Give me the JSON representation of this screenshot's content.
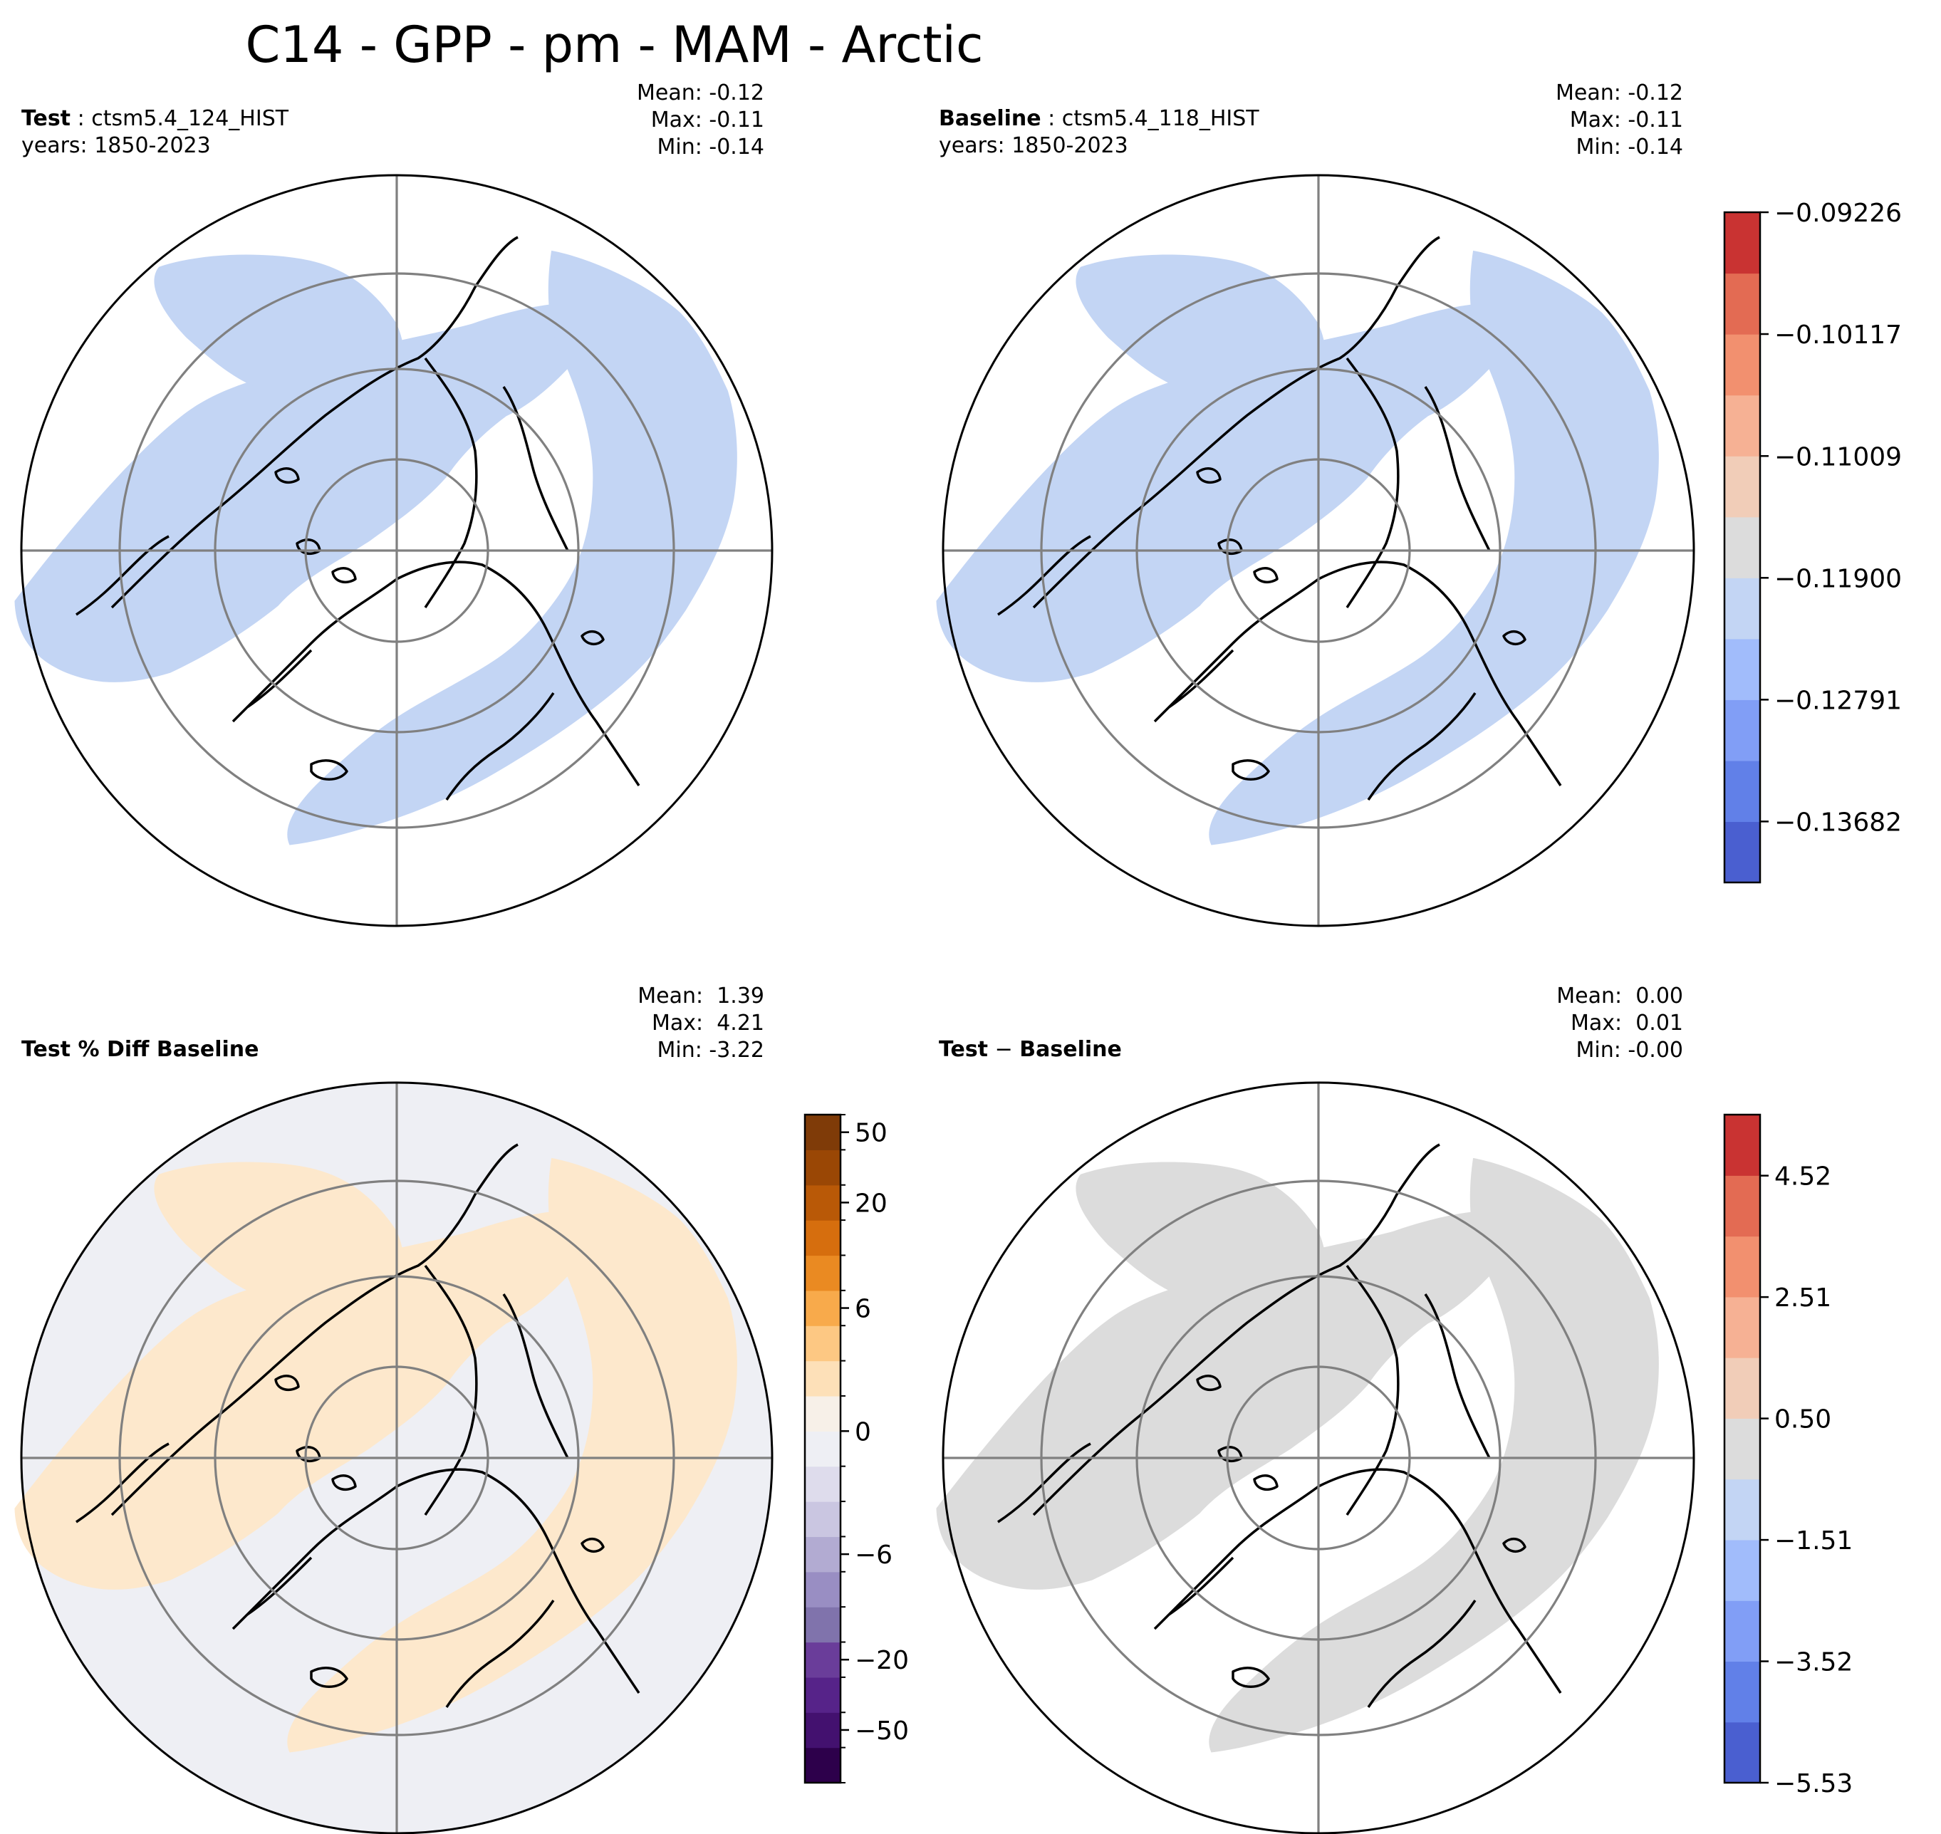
{
  "title": "C14 - GPP - pm - MAM - Arctic",
  "chart_data": [
    {
      "type": "heatmap",
      "projection": "north-polar-stereographic",
      "label": "Test",
      "case": "ctsm5.4_124_HIST",
      "years": "years: 1850-2023",
      "stats": {
        "mean": "Mean: -0.12",
        "max": "Max: -0.11",
        "min": "Min: -0.14"
      },
      "latitude_rings": [
        50,
        60,
        70,
        80
      ],
      "field_color": "#c3d5f4",
      "ocean_color": "#ffffff"
    },
    {
      "type": "heatmap",
      "projection": "north-polar-stereographic",
      "label": "Baseline",
      "case": "ctsm5.4_118_HIST",
      "years": "years: 1850-2023",
      "stats": {
        "mean": "Mean: -0.12",
        "max": "Max: -0.11",
        "min": "Min: -0.14"
      },
      "latitude_rings": [
        50,
        60,
        70,
        80
      ],
      "field_color": "#c3d5f4",
      "ocean_color": "#ffffff"
    },
    {
      "type": "heatmap",
      "projection": "north-polar-stereographic",
      "label": "Test % Diff Baseline",
      "stats": {
        "mean": "Mean:  1.39",
        "max": "Max:  4.21",
        "min": "Min: -3.22"
      },
      "latitude_rings": [
        50,
        60,
        70,
        80
      ],
      "field_color": "#fde8cc",
      "ocean_color": "#eeeff4"
    },
    {
      "type": "heatmap",
      "projection": "north-polar-stereographic",
      "label": "Test − Baseline",
      "label_parts": [
        "Test",
        "−",
        "Baseline"
      ],
      "stats": {
        "mean": "Mean:  0.00",
        "max": "Max:  0.01",
        "min": "Min: -0.00"
      },
      "latitude_rings": [
        50,
        60,
        70,
        80
      ],
      "field_color": "#dcdcdc",
      "ocean_color": "#ffffff"
    }
  ],
  "colorbars": {
    "top": {
      "colors": [
        "#4a5fd0",
        "#6180e8",
        "#819ef6",
        "#a1bcfb",
        "#c3d5f4",
        "#dcdcdc",
        "#f1cdb8",
        "#f6b194",
        "#f2906f",
        "#e36b53",
        "#c93332"
      ],
      "ticks": [
        {
          "label": "−0.13682",
          "value": -0.13682
        },
        {
          "label": "−0.12791",
          "value": -0.12791
        },
        {
          "label": "−0.11900",
          "value": -0.119
        },
        {
          "label": "−0.11009",
          "value": -0.11009
        },
        {
          "label": "−0.10117",
          "value": -0.10117
        },
        {
          "label": "−0.09226",
          "value": -0.09226
        }
      ],
      "range": [
        -0.14128,
        -0.09226
      ]
    },
    "pct": {
      "colors": [
        "#2d004b",
        "#43116f",
        "#562389",
        "#6a3d9a",
        "#8073ac",
        "#998ec3",
        "#b2abd2",
        "#cac6e1",
        "#dedcec",
        "#eeeff4",
        "#f7f0e8",
        "#fde0b8",
        "#fdc883",
        "#f8aa4b",
        "#ea8a22",
        "#d66e0e",
        "#b95907",
        "#9a4705",
        "#7f3b08"
      ],
      "ticks": [
        {
          "label": "−50",
          "index": 1
        },
        {
          "label": "−20",
          "index": 3
        },
        {
          "label": "−6",
          "index": 6
        },
        {
          "label": "0",
          "index": 9.5
        },
        {
          "label": "6",
          "index": 13
        },
        {
          "label": "20",
          "index": 16
        },
        {
          "label": "50",
          "index": 18
        }
      ]
    },
    "diff": {
      "colors": [
        "#4a5fd0",
        "#6180e8",
        "#819ef6",
        "#a1bcfb",
        "#c3d5f4",
        "#dcdcdc",
        "#f1cdb8",
        "#f6b194",
        "#f2906f",
        "#e36b53",
        "#c93332"
      ],
      "ticks": [
        {
          "label": "−5.53",
          "value": -5.53
        },
        {
          "label": "−3.52",
          "value": -3.52
        },
        {
          "label": "−1.51",
          "value": -1.51
        },
        {
          "label": "0.50",
          "value": 0.5
        },
        {
          "label": "2.51",
          "value": 2.51
        },
        {
          "label": "4.52",
          "value": 4.52
        }
      ],
      "range": [
        -5.53,
        5.53
      ]
    }
  }
}
